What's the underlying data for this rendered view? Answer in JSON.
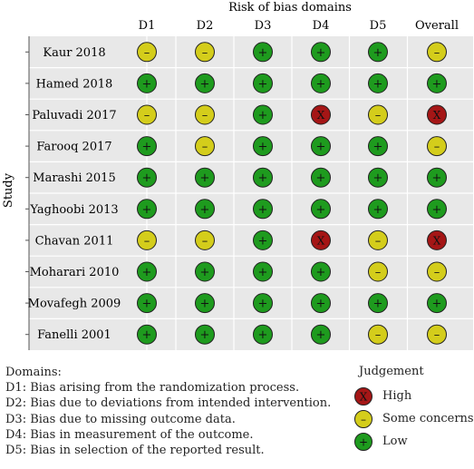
{
  "header": {
    "domains_title": "Risk of bias domains",
    "y_axis_label": "Study"
  },
  "columns": [
    "D1",
    "D2",
    "D3",
    "D4",
    "D5",
    "Overall"
  ],
  "studies": [
    {
      "name": "Kaur 2018",
      "judgements": [
        "some",
        "some",
        "low",
        "low",
        "low",
        "some"
      ]
    },
    {
      "name": "Hamed 2018",
      "judgements": [
        "low",
        "low",
        "low",
        "low",
        "low",
        "low"
      ]
    },
    {
      "name": "Paluvadi 2017",
      "judgements": [
        "some",
        "some",
        "low",
        "high",
        "some",
        "high"
      ]
    },
    {
      "name": "Farooq 2017",
      "judgements": [
        "low",
        "some",
        "low",
        "low",
        "low",
        "some"
      ]
    },
    {
      "name": "Marashi 2015",
      "judgements": [
        "low",
        "low",
        "low",
        "low",
        "low",
        "low"
      ]
    },
    {
      "name": "Yaghoobi 2013",
      "judgements": [
        "low",
        "low",
        "low",
        "low",
        "low",
        "low"
      ]
    },
    {
      "name": "Chavan 2011",
      "judgements": [
        "some",
        "some",
        "low",
        "high",
        "some",
        "high"
      ]
    },
    {
      "name": "Moharari 2010",
      "judgements": [
        "low",
        "low",
        "low",
        "low",
        "some",
        "some"
      ]
    },
    {
      "name": "Movafegh 2009",
      "judgements": [
        "low",
        "low",
        "low",
        "low",
        "low",
        "low"
      ]
    },
    {
      "name": "Fanelli 2001",
      "judgements": [
        "low",
        "low",
        "low",
        "low",
        "some",
        "some"
      ]
    }
  ],
  "symbols": {
    "low": {
      "glyph": "+",
      "fill": "#1e9b1e"
    },
    "some": {
      "glyph": "–",
      "fill": "#d4cd1b"
    },
    "high": {
      "glyph": "X",
      "fill": "#a51616"
    }
  },
  "domains_legend": {
    "title": "Domains:",
    "items": [
      "D1: Bias arising from the randomization process.",
      "D2: Bias due to deviations from intended intervention.",
      "D3: Bias due to missing outcome data.",
      "D4: Bias in measurement of the outcome.",
      "D5: Bias in selection of the reported result."
    ]
  },
  "judgement_legend": {
    "title": "Judgement",
    "items": [
      {
        "key": "high",
        "label": "High"
      },
      {
        "key": "some",
        "label": "Some concerns"
      },
      {
        "key": "low",
        "label": "Low"
      }
    ]
  },
  "colors": {
    "grid_bg": "#e8e8e8",
    "grid_line": "#ffffff",
    "axis": "#555555"
  }
}
